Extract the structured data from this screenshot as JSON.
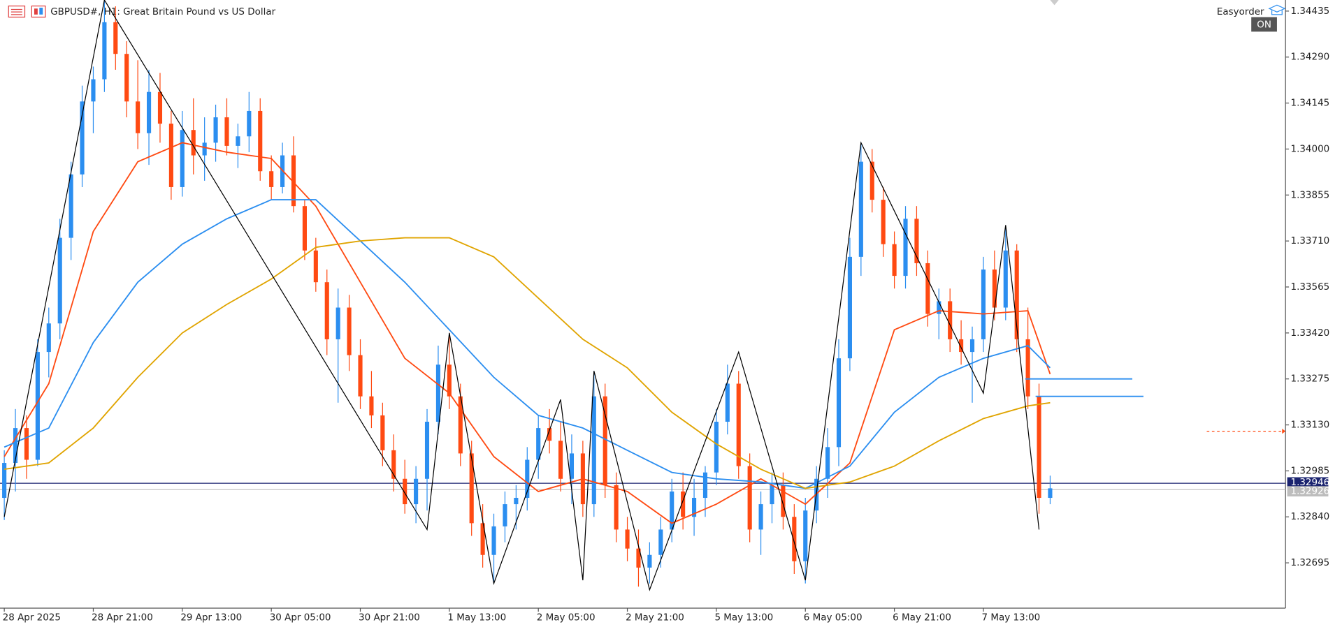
{
  "chart_data": {
    "type": "candlestick",
    "title": "GBPUSD#, H1:  Great Britain Pound vs US Dollar",
    "panel_label": "Easyorder",
    "panel_state": "ON",
    "up_color": "#2b8ef0",
    "down_color": "#ff4a12",
    "ylim": [
      1.32552,
      1.3447
    ],
    "yticks": [
      {
        "value": 1.34435,
        "label": "1.34435"
      },
      {
        "value": 1.3429,
        "label": "1.34290"
      },
      {
        "value": 1.34145,
        "label": "1.34145"
      },
      {
        "value": 1.34,
        "label": "1.34000"
      },
      {
        "value": 1.33855,
        "label": "1.33855"
      },
      {
        "value": 1.3371,
        "label": "1.33710"
      },
      {
        "value": 1.33565,
        "label": "1.33565"
      },
      {
        "value": 1.3342,
        "label": "1.33420"
      },
      {
        "value": 1.33275,
        "label": "1.33275"
      },
      {
        "value": 1.3313,
        "label": "1.33130"
      },
      {
        "value": 1.32985,
        "label": "1.32985"
      },
      {
        "value": 1.3284,
        "label": "1.32840"
      },
      {
        "value": 1.32695,
        "label": "1.32695"
      }
    ],
    "xticks": [
      {
        "value": 0,
        "label": "28 Apr 2025"
      },
      {
        "value": 8,
        "label": "28 Apr 21:00"
      },
      {
        "value": 16,
        "label": "29 Apr 13:00"
      },
      {
        "value": 24,
        "label": "30 Apr 05:00"
      },
      {
        "value": 32,
        "label": "30 Apr 21:00"
      },
      {
        "value": 40,
        "label": "1 May 13:00"
      },
      {
        "value": 48,
        "label": "2 May 05:00"
      },
      {
        "value": 56,
        "label": "2 May 21:00"
      },
      {
        "value": 64,
        "label": "5 May 13:00"
      },
      {
        "value": 72,
        "label": "6 May 05:00"
      },
      {
        "value": 80,
        "label": "6 May 21:00"
      },
      {
        "value": 88,
        "label": "7 May 13:00"
      }
    ],
    "candles": [
      [
        1.329,
        1.3305,
        1.3283,
        1.3301
      ],
      [
        1.3301,
        1.3318,
        1.3292,
        1.3312
      ],
      [
        1.3312,
        1.3316,
        1.3296,
        1.3302
      ],
      [
        1.3302,
        1.334,
        1.33,
        1.3336
      ],
      [
        1.3336,
        1.335,
        1.3328,
        1.3345
      ],
      [
        1.3345,
        1.3378,
        1.334,
        1.3372
      ],
      [
        1.3372,
        1.3396,
        1.3365,
        1.3392
      ],
      [
        1.3392,
        1.342,
        1.3388,
        1.3415
      ],
      [
        1.3415,
        1.3426,
        1.3405,
        1.3422
      ],
      [
        1.3422,
        1.3447,
        1.3418,
        1.344
      ],
      [
        1.344,
        1.3445,
        1.3425,
        1.343
      ],
      [
        1.343,
        1.3434,
        1.341,
        1.3415
      ],
      [
        1.3415,
        1.3428,
        1.34,
        1.3405
      ],
      [
        1.3405,
        1.3425,
        1.3395,
        1.3418
      ],
      [
        1.3418,
        1.3424,
        1.3402,
        1.3408
      ],
      [
        1.3408,
        1.3412,
        1.3384,
        1.3388
      ],
      [
        1.3388,
        1.3412,
        1.3385,
        1.3406
      ],
      [
        1.3406,
        1.3416,
        1.3392,
        1.3398
      ],
      [
        1.3398,
        1.341,
        1.339,
        1.3402
      ],
      [
        1.3402,
        1.3414,
        1.3396,
        1.341
      ],
      [
        1.341,
        1.3416,
        1.3398,
        1.3401
      ],
      [
        1.3401,
        1.3408,
        1.3394,
        1.3404
      ],
      [
        1.3404,
        1.3418,
        1.3399,
        1.3412
      ],
      [
        1.3412,
        1.3416,
        1.339,
        1.3393
      ],
      [
        1.3393,
        1.3398,
        1.3384,
        1.3388
      ],
      [
        1.3388,
        1.3402,
        1.3386,
        1.3398
      ],
      [
        1.3398,
        1.3404,
        1.338,
        1.3382
      ],
      [
        1.3382,
        1.3384,
        1.3365,
        1.3368
      ],
      [
        1.3368,
        1.3372,
        1.3355,
        1.3358
      ],
      [
        1.3358,
        1.3362,
        1.3335,
        1.334
      ],
      [
        1.334,
        1.3356,
        1.332,
        1.335
      ],
      [
        1.335,
        1.3354,
        1.333,
        1.3335
      ],
      [
        1.3335,
        1.334,
        1.3318,
        1.3322
      ],
      [
        1.3322,
        1.333,
        1.3312,
        1.3316
      ],
      [
        1.3316,
        1.332,
        1.33,
        1.3305
      ],
      [
        1.3305,
        1.331,
        1.3292,
        1.3296
      ],
      [
        1.3296,
        1.3302,
        1.3285,
        1.3288
      ],
      [
        1.3288,
        1.33,
        1.3282,
        1.3296
      ],
      [
        1.3296,
        1.3318,
        1.3286,
        1.3314
      ],
      [
        1.3314,
        1.3338,
        1.331,
        1.3332
      ],
      [
        1.3332,
        1.3342,
        1.3318,
        1.3322
      ],
      [
        1.3322,
        1.3326,
        1.33,
        1.3304
      ],
      [
        1.3304,
        1.3308,
        1.3278,
        1.3282
      ],
      [
        1.3282,
        1.3288,
        1.3268,
        1.3272
      ],
      [
        1.3272,
        1.3285,
        1.3263,
        1.3281
      ],
      [
        1.3281,
        1.3292,
        1.3276,
        1.3288
      ],
      [
        1.3288,
        1.3294,
        1.328,
        1.329
      ],
      [
        1.329,
        1.3306,
        1.3286,
        1.3302
      ],
      [
        1.3302,
        1.3316,
        1.3296,
        1.3312
      ],
      [
        1.3312,
        1.3318,
        1.3304,
        1.3308
      ],
      [
        1.3308,
        1.3314,
        1.3292,
        1.3296
      ],
      [
        1.3296,
        1.331,
        1.3288,
        1.3304
      ],
      [
        1.3304,
        1.3308,
        1.3284,
        1.3288
      ],
      [
        1.3288,
        1.333,
        1.3284,
        1.3322
      ],
      [
        1.3322,
        1.3326,
        1.329,
        1.3294
      ],
      [
        1.3294,
        1.3298,
        1.3276,
        1.328
      ],
      [
        1.328,
        1.3284,
        1.327,
        1.3274
      ],
      [
        1.3274,
        1.328,
        1.3262,
        1.3268
      ],
      [
        1.3268,
        1.3276,
        1.3263,
        1.3272
      ],
      [
        1.3272,
        1.3284,
        1.3268,
        1.328
      ],
      [
        1.328,
        1.3296,
        1.3276,
        1.3292
      ],
      [
        1.3292,
        1.3298,
        1.328,
        1.3284
      ],
      [
        1.3284,
        1.3296,
        1.3278,
        1.329
      ],
      [
        1.329,
        1.33,
        1.3284,
        1.3298
      ],
      [
        1.3298,
        1.3318,
        1.3294,
        1.3314
      ],
      [
        1.3314,
        1.3332,
        1.331,
        1.3326
      ],
      [
        1.3326,
        1.333,
        1.3296,
        1.33
      ],
      [
        1.33,
        1.3304,
        1.3276,
        1.328
      ],
      [
        1.328,
        1.3292,
        1.3272,
        1.3288
      ],
      [
        1.3288,
        1.3298,
        1.3282,
        1.3294
      ],
      [
        1.3294,
        1.3298,
        1.328,
        1.3284
      ],
      [
        1.3284,
        1.3288,
        1.3266,
        1.327
      ],
      [
        1.327,
        1.329,
        1.3263,
        1.3286
      ],
      [
        1.3286,
        1.33,
        1.3282,
        1.3296
      ],
      [
        1.3296,
        1.3312,
        1.329,
        1.3306
      ],
      [
        1.3306,
        1.334,
        1.33,
        1.3334
      ],
      [
        1.3334,
        1.3372,
        1.333,
        1.3366
      ],
      [
        1.3366,
        1.3402,
        1.336,
        1.3396
      ],
      [
        1.3396,
        1.34,
        1.338,
        1.3384
      ],
      [
        1.3384,
        1.3388,
        1.3366,
        1.337
      ],
      [
        1.337,
        1.3374,
        1.3356,
        1.336
      ],
      [
        1.336,
        1.3382,
        1.3356,
        1.3378
      ],
      [
        1.3378,
        1.3382,
        1.336,
        1.3364
      ],
      [
        1.3364,
        1.3368,
        1.3344,
        1.3348
      ],
      [
        1.3348,
        1.3356,
        1.334,
        1.3352
      ],
      [
        1.3352,
        1.3356,
        1.3336,
        1.334
      ],
      [
        1.334,
        1.3346,
        1.3332,
        1.3336
      ],
      [
        1.3336,
        1.3344,
        1.332,
        1.334
      ],
      [
        1.334,
        1.3366,
        1.3336,
        1.3362
      ],
      [
        1.3362,
        1.3368,
        1.3346,
        1.335
      ],
      [
        1.335,
        1.3376,
        1.3346,
        1.3368
      ],
      [
        1.3368,
        1.337,
        1.3336,
        1.334
      ],
      [
        1.334,
        1.335,
        1.3318,
        1.3322
      ],
      [
        1.3322,
        1.3326,
        1.3285,
        1.329
      ],
      [
        1.329,
        1.3297,
        1.3288,
        1.3293
      ]
    ],
    "series": [
      {
        "color": "#ff4a12",
        "x": [
          0,
          4,
          8,
          12,
          16,
          20,
          24,
          28,
          32,
          36,
          40,
          44,
          48,
          52,
          56,
          60,
          64,
          68,
          72,
          76,
          80,
          84,
          88,
          92,
          94
        ],
        "values": [
          1.3303,
          1.3326,
          1.3374,
          1.3396,
          1.3402,
          1.3399,
          1.3397,
          1.3382,
          1.3358,
          1.3334,
          1.3323,
          1.3303,
          1.3292,
          1.3296,
          1.3292,
          1.3282,
          1.3288,
          1.3296,
          1.3288,
          1.3301,
          1.3343,
          1.3349,
          1.3348,
          1.3349,
          1.3329
        ]
      },
      {
        "color": "#2b8ef0",
        "x": [
          0,
          4,
          8,
          12,
          16,
          20,
          24,
          28,
          32,
          36,
          40,
          44,
          48,
          52,
          56,
          60,
          64,
          68,
          72,
          76,
          80,
          84,
          88,
          92,
          94
        ],
        "values": [
          1.3306,
          1.3312,
          1.3339,
          1.3358,
          1.337,
          1.3378,
          1.3384,
          1.3384,
          1.3371,
          1.3358,
          1.3343,
          1.3328,
          1.3316,
          1.3312,
          1.3305,
          1.3298,
          1.3296,
          1.3295,
          1.3293,
          1.33,
          1.3317,
          1.3328,
          1.3334,
          1.3338,
          1.3331
        ]
      },
      {
        "color": "#e0a400",
        "x": [
          0,
          4,
          8,
          12,
          16,
          20,
          24,
          28,
          32,
          36,
          40,
          44,
          48,
          52,
          56,
          60,
          64,
          68,
          72,
          76,
          80,
          84,
          88,
          92,
          94
        ],
        "values": [
          1.3299,
          1.3301,
          1.3312,
          1.3328,
          1.3342,
          1.3351,
          1.3359,
          1.3369,
          1.3371,
          1.3372,
          1.3372,
          1.3366,
          1.3353,
          1.334,
          1.3331,
          1.3317,
          1.3307,
          1.3299,
          1.3293,
          1.3295,
          1.33,
          1.3308,
          1.3315,
          1.3319,
          1.332
        ]
      },
      {
        "color": "#000000",
        "x": [
          0,
          9,
          38,
          40,
          44,
          50,
          52,
          53,
          58,
          66,
          72,
          77,
          88,
          90,
          93
        ],
        "values": [
          1.3284,
          1.3447,
          1.328,
          1.3342,
          1.3263,
          1.3321,
          1.3264,
          1.333,
          1.3261,
          1.3336,
          1.3264,
          1.3402,
          1.3323,
          1.3376,
          1.328
        ]
      }
    ],
    "levels": [
      {
        "value": 1.33275,
        "color": "#2b8ef0"
      },
      {
        "value": 1.3322,
        "color": "#2b8ef0"
      },
      {
        "value": 1.3311,
        "color": "#ff4a12"
      }
    ],
    "price_lines": [
      {
        "value": 1.32946,
        "color": "#1b2470"
      },
      {
        "value": 1.32926,
        "color": "#bdbdbd"
      }
    ]
  }
}
